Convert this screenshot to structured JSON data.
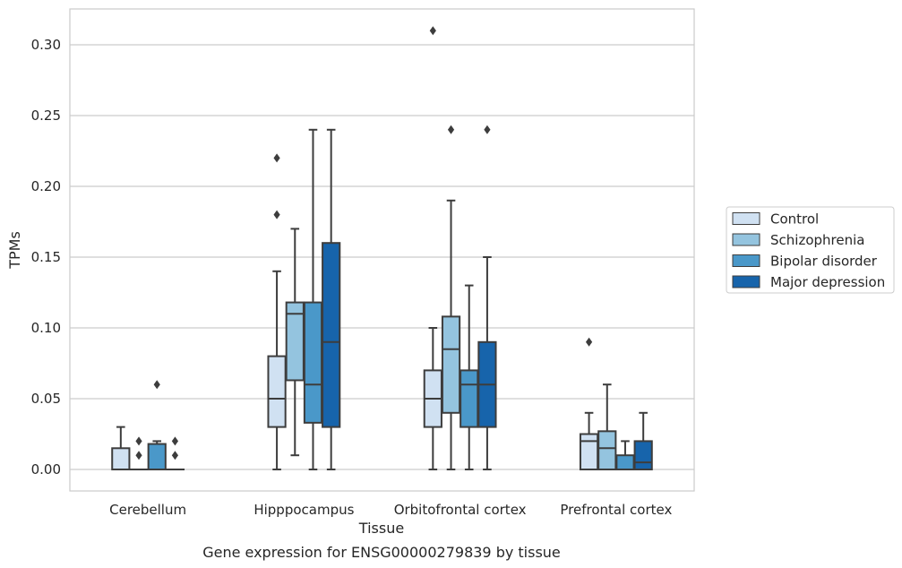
{
  "chart_data": {
    "type": "box",
    "title": "Gene expression for ENSG00000279839 by tissue",
    "xlabel": "Tissue",
    "ylabel": "TPMs",
    "ylim": [
      -0.015,
      0.325
    ],
    "yticks": [
      0.0,
      0.05,
      0.1,
      0.15,
      0.2,
      0.25,
      0.3
    ],
    "ytick_labels": [
      "0.00",
      "0.05",
      "0.10",
      "0.15",
      "0.20",
      "0.25",
      "0.30"
    ],
    "grid": "horizontal",
    "legend_position": "right-center",
    "categories": [
      "Cerebellum",
      "Hipppocampus",
      "Orbitofrontal cortex",
      "Prefrontal cortex"
    ],
    "series": [
      {
        "name": "Control",
        "color": "#d0e1f2",
        "boxes": [
          {
            "whislo": 0.0,
            "q1": 0.0,
            "med": 0.0,
            "q3": 0.015,
            "whishi": 0.03,
            "fliers": []
          },
          {
            "whislo": 0.0,
            "q1": 0.03,
            "med": 0.05,
            "q3": 0.08,
            "whishi": 0.14,
            "fliers": [
              0.18,
              0.22
            ]
          },
          {
            "whislo": 0.0,
            "q1": 0.03,
            "med": 0.05,
            "q3": 0.07,
            "whishi": 0.1,
            "fliers": [
              0.31
            ]
          },
          {
            "whislo": 0.0,
            "q1": 0.0,
            "med": 0.02,
            "q3": 0.025,
            "whishi": 0.04,
            "fliers": [
              0.09
            ]
          }
        ]
      },
      {
        "name": "Schizophrenia",
        "color": "#94c4df",
        "boxes": [
          {
            "whislo": 0.0,
            "q1": 0.0,
            "med": 0.0,
            "q3": 0.0,
            "whishi": 0.0,
            "fliers": [
              0.01,
              0.02
            ]
          },
          {
            "whislo": 0.01,
            "q1": 0.063,
            "med": 0.11,
            "q3": 0.118,
            "whishi": 0.17,
            "fliers": []
          },
          {
            "whislo": 0.0,
            "q1": 0.04,
            "med": 0.085,
            "q3": 0.108,
            "whishi": 0.19,
            "fliers": [
              0.24
            ]
          },
          {
            "whislo": 0.0,
            "q1": 0.0,
            "med": 0.015,
            "q3": 0.027,
            "whishi": 0.06,
            "fliers": []
          }
        ]
      },
      {
        "name": "Bipolar disorder",
        "color": "#4a98c9",
        "boxes": [
          {
            "whislo": 0.0,
            "q1": 0.0,
            "med": 0.0,
            "q3": 0.018,
            "whishi": 0.02,
            "fliers": [
              0.06
            ]
          },
          {
            "whislo": 0.0,
            "q1": 0.033,
            "med": 0.06,
            "q3": 0.118,
            "whishi": 0.24,
            "fliers": []
          },
          {
            "whislo": 0.0,
            "q1": 0.03,
            "med": 0.06,
            "q3": 0.07,
            "whishi": 0.13,
            "fliers": []
          },
          {
            "whislo": 0.0,
            "q1": 0.0,
            "med": 0.0,
            "q3": 0.01,
            "whishi": 0.02,
            "fliers": []
          }
        ]
      },
      {
        "name": "Major depression",
        "color": "#1764ab",
        "boxes": [
          {
            "whislo": 0.0,
            "q1": 0.0,
            "med": 0.0,
            "q3": 0.0,
            "whishi": 0.0,
            "fliers": [
              0.01,
              0.02
            ]
          },
          {
            "whislo": 0.0,
            "q1": 0.03,
            "med": 0.09,
            "q3": 0.16,
            "whishi": 0.24,
            "fliers": []
          },
          {
            "whislo": 0.0,
            "q1": 0.03,
            "med": 0.06,
            "q3": 0.09,
            "whishi": 0.15,
            "fliers": [
              0.24
            ]
          },
          {
            "whislo": 0.0,
            "q1": 0.0,
            "med": 0.005,
            "q3": 0.02,
            "whishi": 0.04,
            "fliers": []
          }
        ]
      }
    ]
  }
}
